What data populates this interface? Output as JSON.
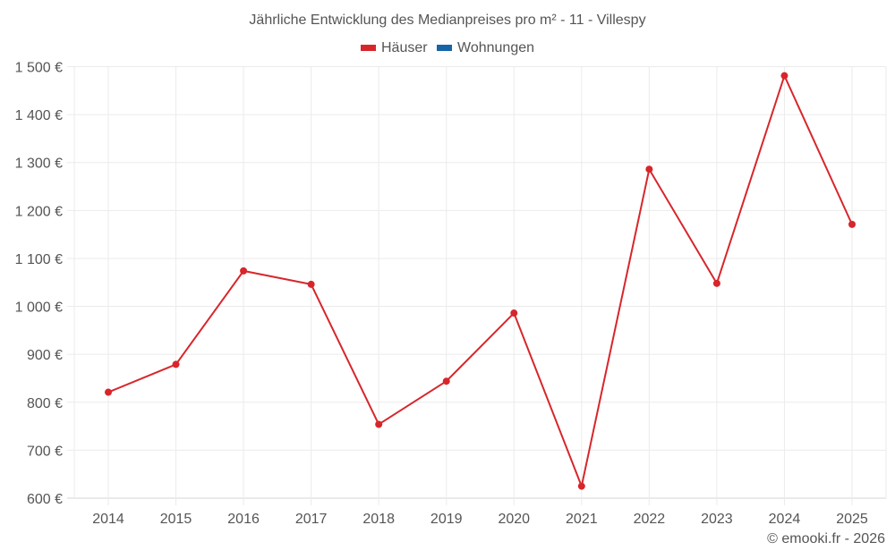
{
  "title": "Jährliche Entwicklung des Medianpreises pro m² - 11 - Villespy",
  "legend": [
    {
      "label": "Häuser",
      "color": "#d7262b"
    },
    {
      "label": "Wohnungen",
      "color": "#1565a8"
    }
  ],
  "credit": "© emooki.fr - 2026",
  "chart_data": {
    "type": "line",
    "title": "Jährliche Entwicklung des Medianpreises pro m² - 11 - Villespy",
    "xlabel": "",
    "ylabel": "",
    "categories": [
      "2014",
      "2015",
      "2016",
      "2017",
      "2018",
      "2019",
      "2020",
      "2021",
      "2022",
      "2023",
      "2024",
      "2025"
    ],
    "series": [
      {
        "name": "Häuser",
        "color": "#d7262b",
        "values": [
          821,
          879,
          1074,
          1046,
          754,
          844,
          986,
          625,
          1286,
          1048,
          1481,
          1171
        ]
      },
      {
        "name": "Wohnungen",
        "color": "#1565a8",
        "values": []
      }
    ],
    "ylim": [
      600,
      1500
    ],
    "yticks": [
      600,
      700,
      800,
      900,
      1000,
      1100,
      1200,
      1300,
      1400,
      1500
    ],
    "ytick_labels": [
      "600 €",
      "700 €",
      "800 €",
      "900 €",
      "1 000 €",
      "1 100 €",
      "1 200 €",
      "1 300 €",
      "1 400 €",
      "1 500 €"
    ],
    "grid": true,
    "legend_position": "top"
  }
}
